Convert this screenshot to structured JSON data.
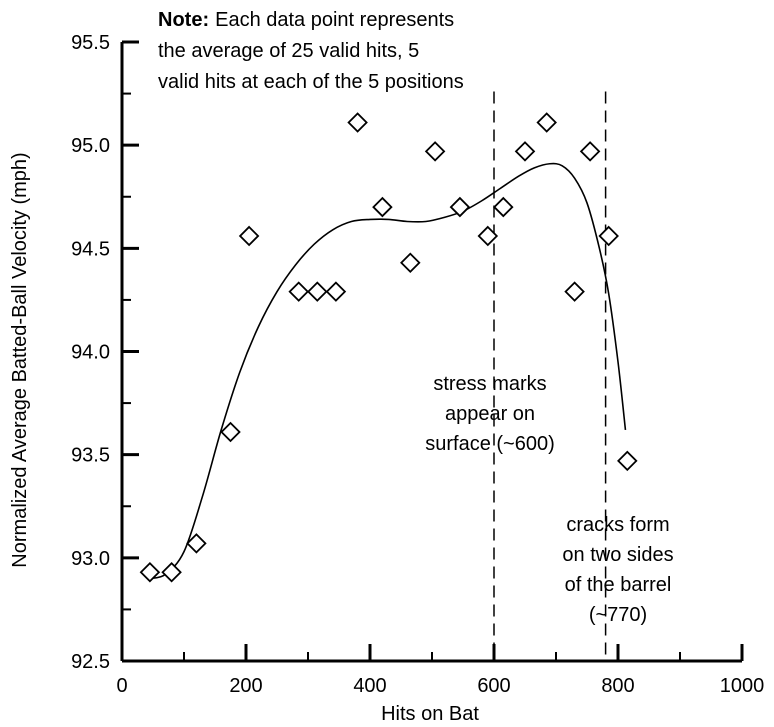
{
  "chart_data": {
    "type": "scatter",
    "xlabel": "Hits on Bat",
    "ylabel": "Normalized Average Batted-Ball Velocity (mph)",
    "xlim": [
      0,
      1000
    ],
    "ylim": [
      92.5,
      95.5
    ],
    "xticks": [
      0,
      200,
      400,
      600,
      800,
      1000
    ],
    "yticks": [
      92.5,
      93.0,
      93.5,
      94.0,
      94.5,
      95.0,
      95.5
    ],
    "xtick_labels": [
      "0",
      "200",
      "400",
      "600",
      "800",
      "1000"
    ],
    "ytick_labels": [
      "92.5",
      "93.0",
      "93.5",
      "94.0",
      "94.5",
      "95.0",
      "95.5"
    ],
    "grid": false,
    "points": {
      "x": [
        45,
        80,
        120,
        175,
        205,
        285,
        315,
        345,
        380,
        420,
        465,
        505,
        545,
        590,
        615,
        650,
        685,
        730,
        755,
        785,
        815
      ],
      "y": [
        92.93,
        92.93,
        93.07,
        93.61,
        94.56,
        94.29,
        94.29,
        94.29,
        95.11,
        94.7,
        94.43,
        94.97,
        94.7,
        94.56,
        94.7,
        94.97,
        95.11,
        94.29,
        94.97,
        94.56,
        93.47
      ]
    },
    "fit_curve": {
      "x": [
        45,
        70,
        100,
        130,
        160,
        190,
        220,
        250,
        280,
        310,
        340,
        370,
        400,
        430,
        460,
        490,
        520,
        550,
        580,
        610,
        640,
        665,
        690,
        710,
        730,
        750,
        770,
        785,
        800,
        812
      ],
      "y": [
        92.9,
        92.92,
        93.03,
        93.3,
        93.62,
        93.9,
        94.12,
        94.29,
        94.42,
        94.52,
        94.59,
        94.63,
        94.64,
        94.64,
        94.63,
        94.63,
        94.65,
        94.68,
        94.73,
        94.79,
        94.85,
        94.89,
        94.91,
        94.9,
        94.84,
        94.72,
        94.5,
        94.28,
        93.95,
        93.62
      ]
    },
    "reference_lines": [
      {
        "x": 600,
        "style": "dashed"
      },
      {
        "x": 780,
        "style": "dashed"
      }
    ],
    "note": {
      "bold": "Note:",
      "lines": [
        "Each data point represents",
        "the average of 25 valid hits, 5",
        "valid hits at each of the 5 positions"
      ]
    },
    "annotations": [
      {
        "lines": [
          "stress marks",
          "appear on",
          "surface (~600)"
        ]
      },
      {
        "lines": [
          "cracks form",
          "on two sides",
          "of the barrel",
          "(~770)"
        ]
      }
    ]
  }
}
